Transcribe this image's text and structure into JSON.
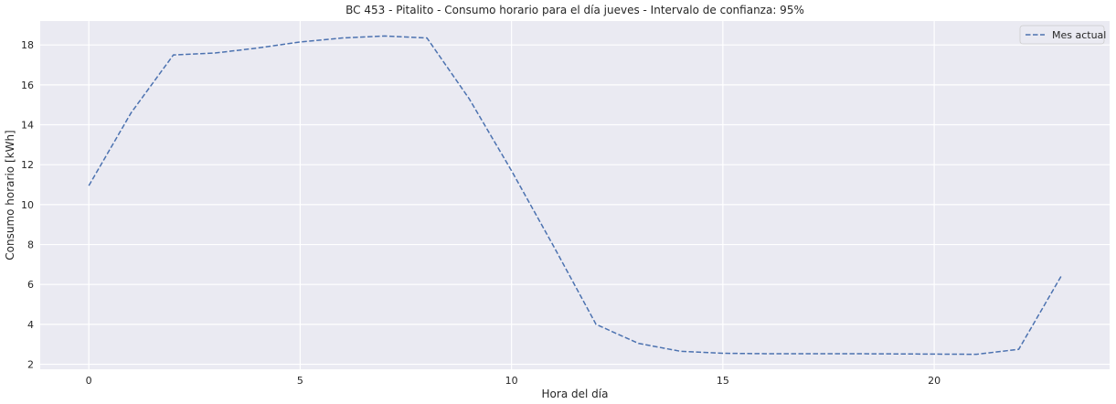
{
  "chart_data": {
    "type": "line",
    "title": "BC 453 - Pitalito - Consumo horario para el día jueves - Intervalo de confianza: 95%",
    "xlabel": "Hora del día",
    "ylabel": "Consumo horario [kWh]",
    "xlim": [
      -1.15,
      24.15
    ],
    "ylim": [
      1.75,
      19.2
    ],
    "xticks": [
      0,
      5,
      10,
      15,
      20
    ],
    "yticks": [
      2,
      4,
      6,
      8,
      10,
      12,
      14,
      16,
      18
    ],
    "grid": true,
    "legend_position": "top-right",
    "series": [
      {
        "name": "Mes actual",
        "style": "dashed",
        "color": "#4c72b0",
        "x": [
          0,
          1,
          2,
          3,
          4,
          5,
          6,
          7,
          8,
          9,
          10,
          11,
          12,
          13,
          14,
          15,
          16,
          17,
          18,
          19,
          20,
          21,
          22,
          23
        ],
        "y": [
          10.95,
          14.6,
          17.5,
          17.6,
          17.85,
          18.15,
          18.35,
          18.45,
          18.35,
          15.3,
          11.7,
          7.9,
          4.0,
          3.05,
          2.65,
          2.55,
          2.53,
          2.53,
          2.53,
          2.52,
          2.51,
          2.5,
          2.75,
          6.4
        ]
      }
    ],
    "colors": {
      "background": "#eaeaf2",
      "grid": "#ffffff",
      "text": "#262626"
    }
  }
}
